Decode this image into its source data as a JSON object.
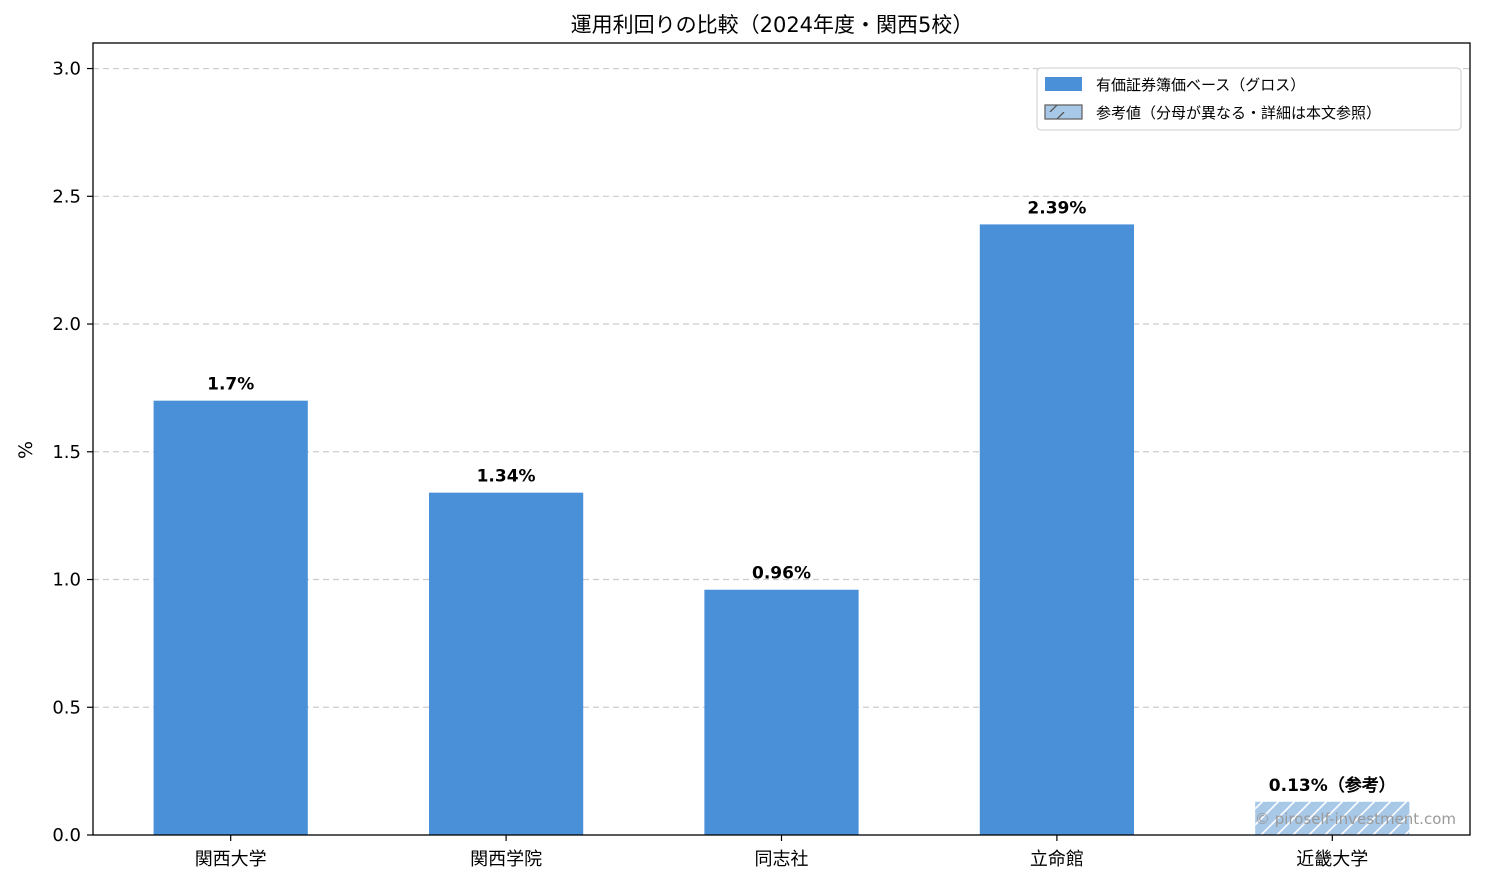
{
  "chart_data": {
    "type": "bar",
    "title": "運用利回りの比較（2024年度・関西5校）",
    "ylabel": "%",
    "xlabel": "",
    "ylim": [
      0,
      3.1
    ],
    "yticks": [
      "0.0",
      "0.5",
      "1.0",
      "1.5",
      "2.0",
      "2.5",
      "3.0"
    ],
    "grid": "y-dashed",
    "legend_position": "top-right",
    "categories": [
      "関西大学",
      "関西学院",
      "同志社",
      "立命館",
      "近畿大学"
    ],
    "values": [
      1.7,
      1.34,
      0.96,
      2.39,
      0.13
    ],
    "data_labels": [
      "1.7%",
      "1.34%",
      "0.96%",
      "2.39%",
      "0.13%（参考）"
    ],
    "reference_flags": [
      false,
      false,
      false,
      false,
      true
    ],
    "legend": [
      {
        "label": "有価証券簿価ベース（グロス）",
        "style": "solid"
      },
      {
        "label": "参考値（分母が異なる・詳細は本文参照）",
        "style": "hatched"
      }
    ],
    "colors": {
      "main": "#4a90d9",
      "reference": "#a8c8e8",
      "grid": "#cccccc"
    }
  },
  "watermark": "© piroself-investment.com"
}
